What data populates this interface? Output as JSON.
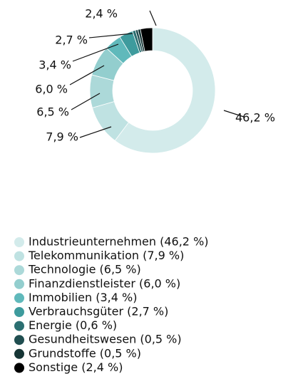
{
  "chart_data": {
    "type": "donut",
    "categories": [
      "Industrieunternehmen (46,2 %)",
      "Telekommunikation (7,9 %)",
      "Technologie (6,5 %)",
      "Finanzdienstleister (6,0 %)",
      "Immobilien (3,4 %)",
      "Verbrauchsgüter (2,7 %)",
      "Energie (0,6 %)",
      "Gesundheitswesen (0,5 %)",
      "Grundstoffe (0,5 %)",
      "Sonstige (2,4 %)"
    ],
    "values": [
      46.2,
      7.9,
      6.5,
      6.0,
      3.4,
      2.7,
      0.6,
      0.5,
      0.5,
      2.4
    ],
    "value_labels": [
      "46,2 %",
      "7,9 %",
      "6,5 %",
      "6,0 %",
      "3,4 %",
      "2,7 %",
      null,
      null,
      null,
      "2,4 %"
    ],
    "colors": [
      "#d3ebeb",
      "#bfe2e2",
      "#acd9d9",
      "#93cece",
      "#60b9bb",
      "#3e9b9d",
      "#2b6f71",
      "#204e50",
      "#163535",
      "#000000"
    ],
    "legend": true
  }
}
